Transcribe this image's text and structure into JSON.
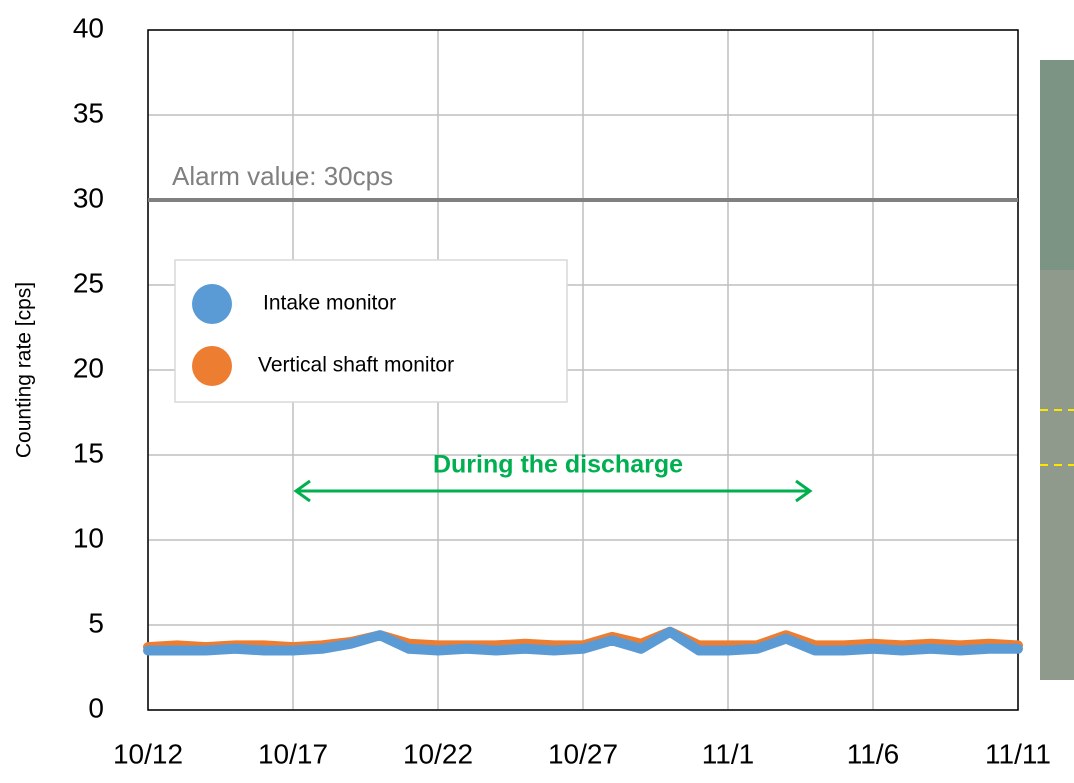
{
  "chart_data": {
    "type": "line",
    "y_label": "Counting rate [cps]",
    "x": [
      "10/12",
      "10/13",
      "10/14",
      "10/15",
      "10/16",
      "10/17",
      "10/18",
      "10/19",
      "10/20",
      "10/21",
      "10/22",
      "10/23",
      "10/24",
      "10/25",
      "10/26",
      "10/27",
      "10/28",
      "10/29",
      "10/30",
      "10/31",
      "11/1",
      "11/2",
      "11/3",
      "11/4",
      "11/5",
      "11/6",
      "11/7",
      "11/8",
      "11/9",
      "11/10",
      "11/11"
    ],
    "series": [
      {
        "name": "Vertical shaft monitor",
        "color": "#ed7d31",
        "values": [
          3.7,
          3.8,
          3.7,
          3.8,
          3.8,
          3.7,
          3.8,
          4.0,
          4.4,
          3.9,
          3.8,
          3.8,
          3.8,
          3.9,
          3.8,
          3.8,
          4.3,
          3.9,
          4.6,
          3.8,
          3.8,
          3.8,
          4.4,
          3.8,
          3.8,
          3.9,
          3.8,
          3.9,
          3.8,
          3.9,
          3.8
        ]
      },
      {
        "name": "Intake monitor",
        "color": "#5b9bd5",
        "values": [
          3.5,
          3.5,
          3.5,
          3.6,
          3.5,
          3.5,
          3.6,
          3.9,
          4.4,
          3.6,
          3.5,
          3.6,
          3.5,
          3.6,
          3.5,
          3.6,
          4.1,
          3.6,
          4.6,
          3.5,
          3.5,
          3.6,
          4.2,
          3.5,
          3.5,
          3.6,
          3.5,
          3.6,
          3.5,
          3.6,
          3.6
        ]
      }
    ],
    "xlim": [
      "10/12",
      "11/11"
    ],
    "xticks": [
      "10/12",
      "10/17",
      "10/22",
      "10/27",
      "11/1",
      "11/6",
      "11/11"
    ],
    "ylim": [
      0,
      40
    ],
    "yticks": [
      0,
      5,
      10,
      15,
      20,
      25,
      30,
      35,
      40
    ],
    "grid": true,
    "alarm_value": 30,
    "alarm_label": "Alarm value: 30cps",
    "annotation": "During the discharge",
    "legend_order": [
      "Intake monitor",
      "Vertical shaft monitor"
    ]
  }
}
